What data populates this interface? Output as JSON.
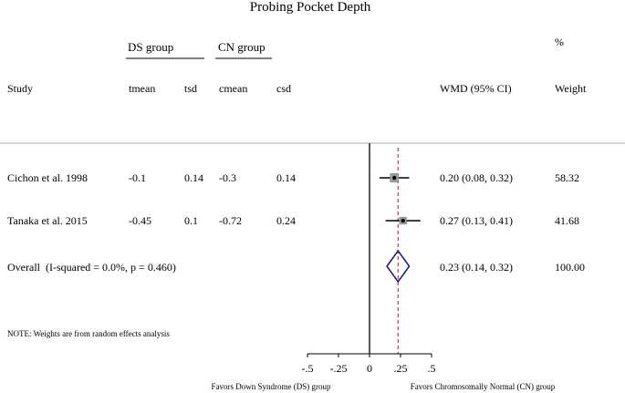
{
  "chart_data": {
    "type": "forest",
    "title": "Probing Pocket Depth",
    "group_headers": {
      "treatment": "DS group",
      "control": "CN group"
    },
    "percent_label": "%",
    "columns": {
      "study": "Study",
      "tmean": "tmean",
      "tsd": "tsd",
      "cmean": "cmean",
      "csd": "csd",
      "effect": "WMD (95% CI)",
      "weight": "Weight"
    },
    "studies": [
      {
        "name": "Cichon et al. 1998",
        "tmean": "-0.1",
        "tsd": "0.14",
        "cmean": "-0.3",
        "csd": "0.14",
        "effect_text": "0.20 (0.08, 0.32)",
        "weight_text": "58.32",
        "estimate": 0.2,
        "ci_low": 0.08,
        "ci_high": 0.32,
        "weight": 58.32
      },
      {
        "name": "Tanaka et al. 2015",
        "tmean": "-0.45",
        "tsd": "0.1",
        "cmean": "-0.72",
        "csd": "0.24",
        "effect_text": "0.27 (0.13, 0.41)",
        "weight_text": "41.68",
        "estimate": 0.27,
        "ci_low": 0.13,
        "ci_high": 0.41,
        "weight": 41.68
      }
    ],
    "overall": {
      "label": "Overall  (I-squared = 0.0%, p = 0.460)",
      "effect_text": "0.23 (0.14, 0.32)",
      "weight_text": "100.00",
      "estimate": 0.23,
      "ci_low": 0.14,
      "ci_high": 0.32
    },
    "note": "NOTE: Weights are from random effects analysis",
    "x_ticks": [
      {
        "value": -0.5,
        "label": "-.5"
      },
      {
        "value": -0.25,
        "label": "-.25"
      },
      {
        "value": 0,
        "label": "0"
      },
      {
        "value": 0.25,
        "label": ".25"
      },
      {
        "value": 0.5,
        "label": ".5"
      }
    ],
    "favors_left": "Favors Down Syndrome (DS) group",
    "favors_right": "Favors Chromosomally Normal (CN) group",
    "colors": {
      "overall_diamond": "#1a1a7a",
      "overall_line": "#c0282d",
      "separator": "#bdbdbd"
    }
  }
}
